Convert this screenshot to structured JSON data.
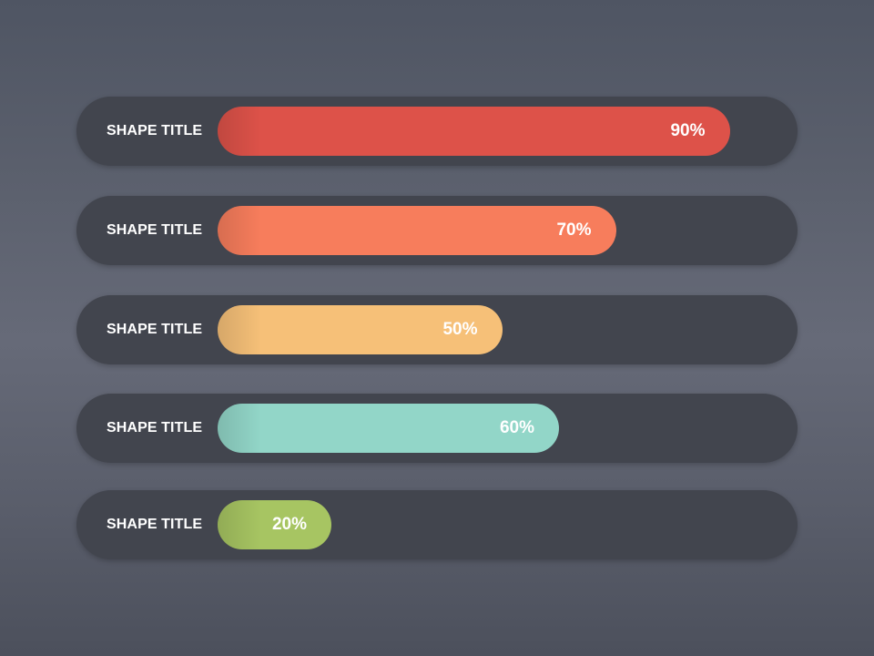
{
  "chart_data": {
    "type": "bar",
    "orientation": "horizontal",
    "categories": [
      "SHAPE TITLE",
      "SHAPE TITLE",
      "SHAPE TITLE",
      "SHAPE TITLE",
      "SHAPE TITLE"
    ],
    "values": [
      90,
      70,
      50,
      60,
      20
    ],
    "value_labels": [
      "90%",
      "70%",
      "50%",
      "60%",
      "20%"
    ],
    "colors": [
      "#dd5249",
      "#f77d5c",
      "#f6c078",
      "#92d6c8",
      "#a7c562"
    ],
    "xlim": [
      0,
      100
    ],
    "unit": "%",
    "grid": false,
    "legend": "none"
  }
}
